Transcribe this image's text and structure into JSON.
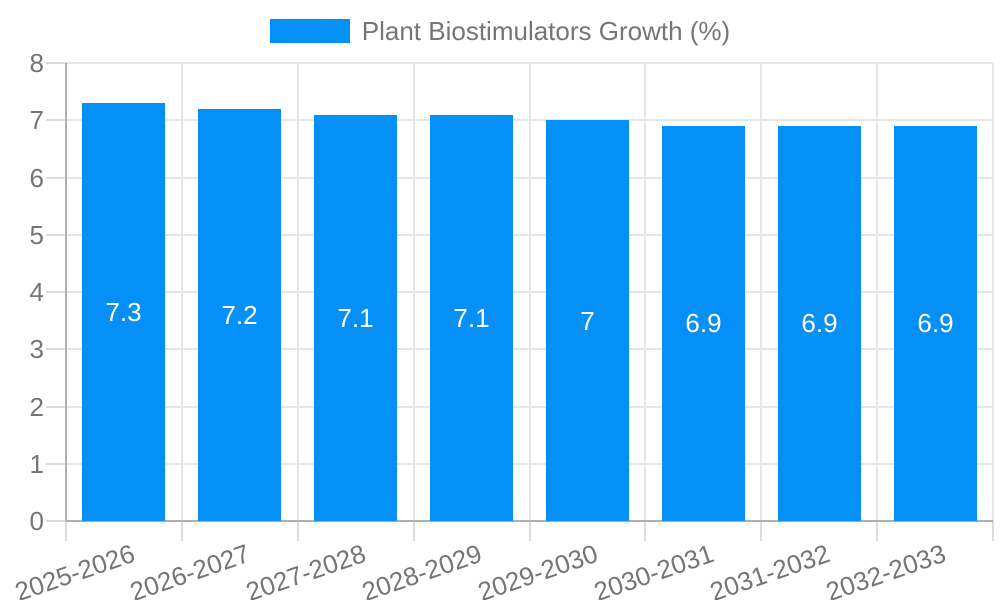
{
  "legend": {
    "items": [
      {
        "label": "Plant Biostimulators Growth (%)",
        "swatch_color": "#0590F8"
      }
    ]
  },
  "chart_data": {
    "type": "bar",
    "title": "Plant Biostimulators Growth (%)",
    "categories": [
      "2025-2026",
      "2026-2027",
      "2027-2028",
      "2028-2029",
      "2029-2030",
      "2030-2031",
      "2031-2032",
      "2032-2033"
    ],
    "values": [
      7.3,
      7.2,
      7.1,
      7.1,
      7,
      6.9,
      6.9,
      6.9
    ],
    "bar_value_labels": [
      "7.3",
      "7.2",
      "7.1",
      "7.1",
      "7",
      "6.9",
      "6.9",
      "6.9"
    ],
    "xlabel": "",
    "ylabel": "",
    "ylim": [
      0,
      8
    ],
    "yticks": [
      0,
      1,
      2,
      3,
      4,
      5,
      6,
      7,
      8
    ],
    "grid": true,
    "legend_position": "top-center",
    "x_label_rotation_deg": -19,
    "colors": {
      "bar": "#0590F8",
      "bar_value_label": "#FFFFFF",
      "axis_text": "#757575",
      "grid_line": "#E6E6E6",
      "tick_mark": "#DCDCDC",
      "axis_line": "#AFAFAF",
      "background": "#FFFFFF"
    }
  }
}
